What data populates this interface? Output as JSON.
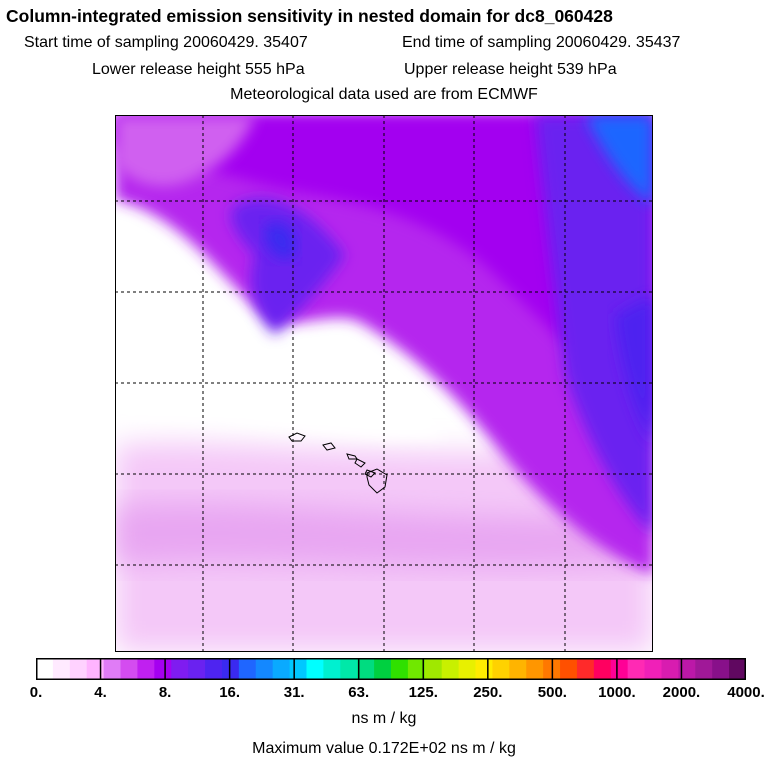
{
  "title": "Column-integrated emission sensitivity in nested domain for dc8_060428",
  "start_sampling": "Start time of sampling 20060429. 35407",
  "end_sampling": "End time of sampling 20060429. 35437",
  "lower_release": "Lower release height  555 hPa",
  "upper_release": "Upper release height  539 hPa",
  "met_data": "Meteorological data used are from ECMWF",
  "colorbar": {
    "ticks": [
      "0.",
      "4.",
      "8.",
      "16.",
      "31.",
      "63.",
      "125.",
      "250.",
      "500.",
      "1000.",
      "2000.",
      "4000."
    ],
    "colors": [
      "#ffffff",
      "#ffeaff",
      "#ffd2ff",
      "#ffb4ff",
      "#e07cf6",
      "#d44cf0",
      "#c020f0",
      "#a500f0",
      "#7f1cf0",
      "#6a22f0",
      "#4e24f0",
      "#3a2af0",
      "#1f66ff",
      "#1488ff",
      "#0aaaff",
      "#00c8ff",
      "#00ffff",
      "#00f0d0",
      "#00e8a8",
      "#00dc80",
      "#00d040",
      "#30e000",
      "#70e800",
      "#a0e800",
      "#c8f000",
      "#e8f000",
      "#ffec00",
      "#ffd200",
      "#ffb400",
      "#ff9600",
      "#ff7800",
      "#ff5000",
      "#ff2a2a",
      "#ff0060",
      "#ff0096",
      "#ff2ab4",
      "#f020b8",
      "#d81cb0",
      "#bc18a8",
      "#a01898",
      "#88108a",
      "#600860"
    ]
  },
  "units": "ns m / kg",
  "max_value": "Maximum value  0.172E+02 ns m / kg"
}
